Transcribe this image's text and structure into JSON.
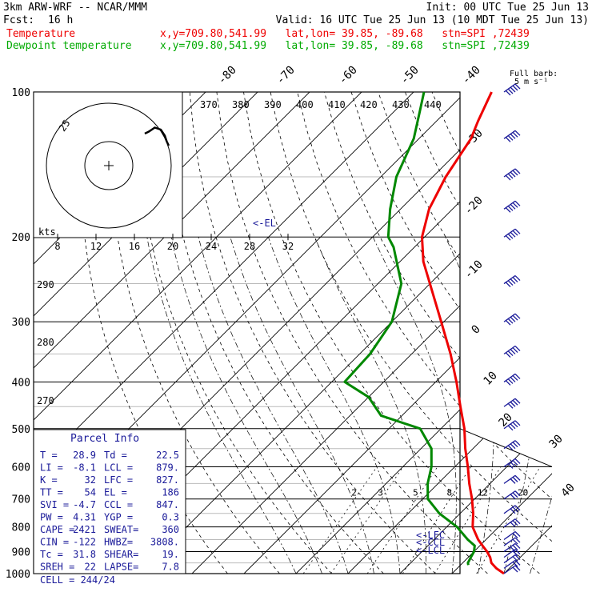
{
  "header": {
    "model": "3km ARW-WRF -- NCAR/MMM",
    "init": "Init: 00 UTC Tue 25 Jun 13",
    "fcst_label": "Fcst:",
    "fcst_value": "16 h",
    "valid": "Valid: 16 UTC Tue 25 Jun 13 (10 MDT Tue 25 Jun 13)",
    "temp_label": "Temperature",
    "temp_loc": "x,y=709.80,541.99   lat,lon= 39.85, -89.68   stn=SPI ,72439",
    "dew_label": "Dewpoint temperature",
    "dew_loc": "x,y=709.80,541.99   lat,lon= 39.85, -89.68   stn=SPI ,72439"
  },
  "colors": {
    "temperature": "#ee0000",
    "dewpoint": "#008800",
    "annotation": "#1a1a99",
    "axes": "#000000"
  },
  "wind_barb_label": "Full barb:\n5 m s⁻¹",
  "hodograph": {
    "ring_labels": [
      "25"
    ],
    "tick_labels": [
      "8",
      "12",
      "16",
      "20",
      "24",
      "28",
      "32"
    ],
    "unit": "kts"
  },
  "theta_labels": [
    "370",
    "380",
    "390",
    "400",
    "410",
    "420",
    "430",
    "440"
  ],
  "theta_e_left_labels": [
    "290",
    "280",
    "270"
  ],
  "mixing_ratio_labels": [
    "2",
    "3",
    "5",
    "8",
    "12",
    "20"
  ],
  "level_annotations": {
    "el": "<-EL",
    "lfc": "<-LFC",
    "ccl": "<-CCL",
    "lcl": "<-LCL"
  },
  "parcel_info": {
    "title": "Parcel Info",
    "rows": [
      {
        "a": "T  =",
        "b": "28.9",
        "c": "Td =",
        "d": "22.5"
      },
      {
        "a": "LI =",
        "b": "-8.1",
        "c": "LCL =",
        "d": "879."
      },
      {
        "a": "K  =",
        "b": "32",
        "c": "LFC =",
        "d": "827."
      },
      {
        "a": "TT =",
        "b": "54",
        "c": "EL  =",
        "d": "186"
      },
      {
        "a": "SVI =",
        "b": "-4.7",
        "c": "CCL =",
        "d": "847."
      },
      {
        "a": "PW =",
        "b": "4.31",
        "c": "YGP =",
        "d": "0.3"
      },
      {
        "a": "CAPE =",
        "b": "2421",
        "c": "SWEAT=",
        "d": "360"
      },
      {
        "a": "CIN =",
        "b": "-122",
        "c": "HWBZ=",
        "d": "3808."
      },
      {
        "a": "Tc =",
        "b": "31.8",
        "c": "SHEAR=",
        "d": "19."
      },
      {
        "a": "SREH =",
        "b": "22",
        "c": "LAPSE=",
        "d": "7.8"
      }
    ],
    "cell": "CELL = 244/24"
  },
  "chart_data": {
    "type": "skew-t",
    "y_axis": {
      "label": "pressure",
      "ticks": [
        100,
        200,
        300,
        400,
        500,
        600,
        700,
        800,
        900,
        1000
      ],
      "scale": "log"
    },
    "isotherm_labels": [
      -80,
      -70,
      -60,
      -50,
      -40,
      -30,
      -20,
      -10,
      0,
      10,
      20,
      30,
      40
    ],
    "series": [
      {
        "name": "Temperature",
        "color": "#ee0000",
        "points": [
          [
            1000,
            30
          ],
          [
            975,
            27.5
          ],
          [
            950,
            25.5
          ],
          [
            925,
            24.2
          ],
          [
            900,
            22.5
          ],
          [
            875,
            20.5
          ],
          [
            850,
            18.5
          ],
          [
            800,
            15
          ],
          [
            750,
            12.5
          ],
          [
            700,
            9.5
          ],
          [
            650,
            6
          ],
          [
            600,
            2.5
          ],
          [
            550,
            -1.5
          ],
          [
            500,
            -5.5
          ],
          [
            450,
            -10.5
          ],
          [
            400,
            -16
          ],
          [
            350,
            -22.5
          ],
          [
            300,
            -30.5
          ],
          [
            250,
            -40
          ],
          [
            225,
            -45.5
          ],
          [
            200,
            -50.5
          ],
          [
            175,
            -54.5
          ],
          [
            150,
            -57.5
          ],
          [
            125,
            -60
          ],
          [
            115,
            -62
          ],
          [
            100,
            -65
          ]
        ]
      },
      {
        "name": "Dewpoint temperature",
        "color": "#008800",
        "points": [
          [
            960,
            21.5
          ],
          [
            950,
            21
          ],
          [
            925,
            20.5
          ],
          [
            900,
            20
          ],
          [
            875,
            19
          ],
          [
            850,
            16.5
          ],
          [
            800,
            12
          ],
          [
            750,
            6
          ],
          [
            700,
            1
          ],
          [
            650,
            -2
          ],
          [
            600,
            -4.5
          ],
          [
            550,
            -8
          ],
          [
            500,
            -14
          ],
          [
            470,
            -24
          ],
          [
            430,
            -30
          ],
          [
            400,
            -37.5
          ],
          [
            350,
            -38
          ],
          [
            300,
            -40
          ],
          [
            250,
            -45.5
          ],
          [
            210,
            -54
          ],
          [
            200,
            -57
          ],
          [
            175,
            -62
          ],
          [
            150,
            -67
          ],
          [
            125,
            -71
          ],
          [
            110,
            -75
          ],
          [
            100,
            -78
          ]
        ]
      }
    ],
    "wind_barbs": {
      "description": "full barb = 5 m/s",
      "levels": [
        [
          1000,
          5
        ],
        [
          975,
          6
        ],
        [
          950,
          7
        ],
        [
          925,
          9
        ],
        [
          900,
          10
        ],
        [
          875,
          8
        ],
        [
          850,
          9
        ],
        [
          800,
          10
        ],
        [
          750,
          11
        ],
        [
          700,
          12
        ],
        [
          650,
          14
        ],
        [
          600,
          15
        ],
        [
          550,
          17
        ],
        [
          500,
          18
        ],
        [
          450,
          19
        ],
        [
          400,
          20
        ],
        [
          350,
          21
        ],
        [
          300,
          22
        ],
        [
          250,
          23
        ],
        [
          200,
          24
        ],
        [
          175,
          25
        ],
        [
          150,
          25
        ],
        [
          125,
          26
        ],
        [
          100,
          27
        ]
      ]
    },
    "hodograph_trace": [
      [
        0,
        0
      ],
      [
        2,
        1
      ],
      [
        5,
        3
      ],
      [
        8,
        2
      ],
      [
        10,
        -1
      ],
      [
        11,
        -4
      ],
      [
        12,
        -6
      ]
    ]
  }
}
